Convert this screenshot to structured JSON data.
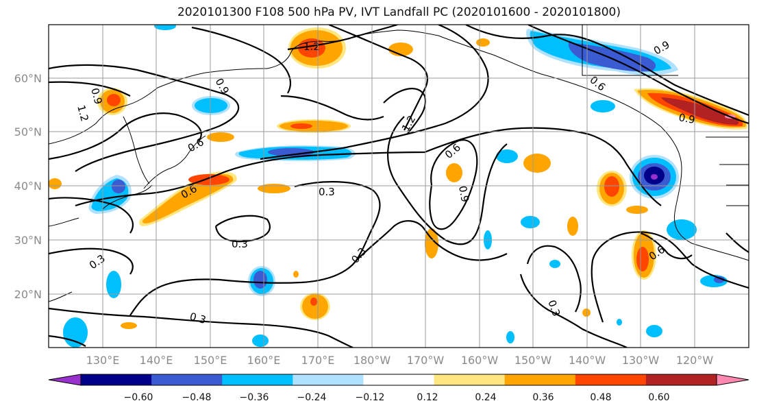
{
  "title": "2020101300 F108 500 hPa PV, IVT Landfall PC (2020101600 - 2020101800)",
  "lat_labels": [
    "60°N",
    "50°N",
    "40°N",
    "30°N",
    "20°N"
  ],
  "lon_labels": [
    "130°E",
    "140°E",
    "150°E",
    "160°E",
    "170°E",
    "180°W",
    "170°W",
    "160°W",
    "150°W",
    "140°W",
    "130°W",
    "120°W"
  ],
  "contour_labels": [
    "1.2",
    "0.9",
    "1.2",
    "0.9",
    "1.2",
    "0.6",
    "0.9",
    "0.6",
    "0.6",
    "0.9",
    "0.6",
    "0.3",
    "0.3",
    "0.3",
    "0.3",
    "0.3",
    "0.3",
    "0.9",
    "0.6"
  ],
  "colorbar": {
    "labels": [
      "−0.60",
      "−0.48",
      "−0.36",
      "−0.24",
      "−0.12",
      "0.12",
      "0.24",
      "0.36",
      "0.48",
      "0.60"
    ],
    "colors": [
      "#9932cc",
      "#00008b",
      "#3a5bd1",
      "#00bfff",
      "#b0e2ff",
      "#ffffff",
      "#ffe680",
      "#ffa500",
      "#ff4500",
      "#b22222",
      "#ff88b0"
    ]
  }
}
